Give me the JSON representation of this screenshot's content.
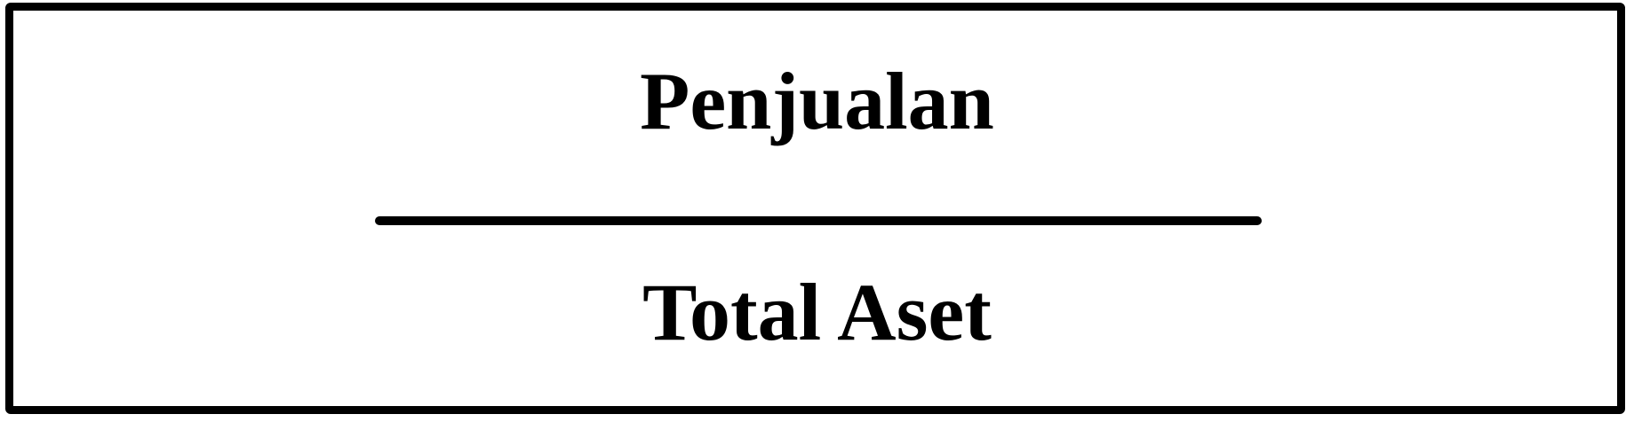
{
  "formula": {
    "numerator": "Penjualan",
    "denominator": "Total Aset"
  }
}
